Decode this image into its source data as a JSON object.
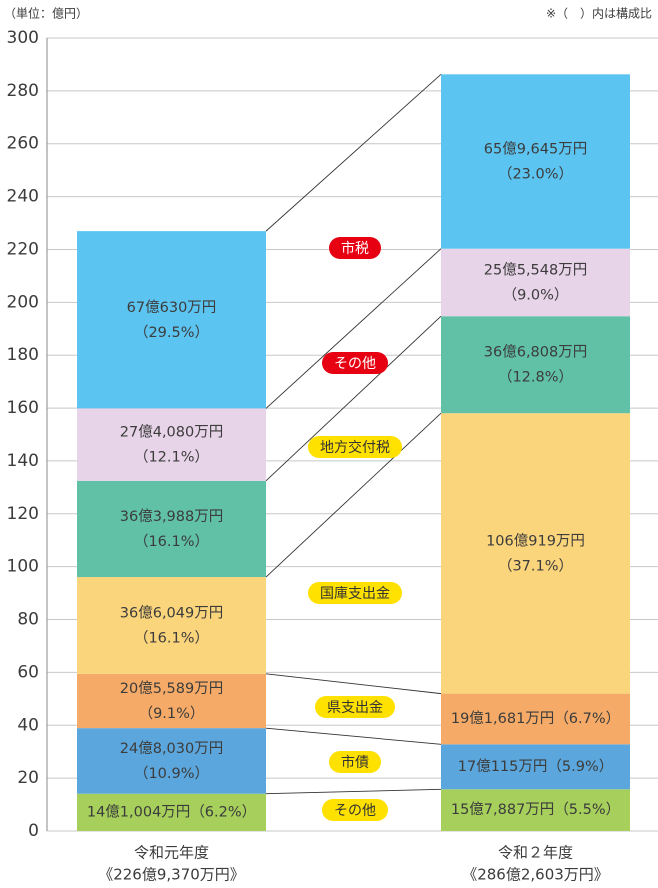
{
  "chart_data": {
    "type": "stacked_bar",
    "unit_note": "（単位：億円）",
    "share_note": "※（　）内は構成比",
    "categories": [
      "令和元年度",
      "令和２年度"
    ],
    "total_labels": [
      "《226億9,370万円》",
      "《286億2,603万円》"
    ],
    "ylim": [
      0,
      300
    ],
    "yticks": [
      0,
      20,
      40,
      60,
      80,
      100,
      120,
      140,
      160,
      180,
      200,
      220,
      240,
      260,
      280,
      300
    ],
    "grid": true,
    "series": [
      {
        "name": "その他",
        "color": "#a6cf5b",
        "badge_color": "#ffe100",
        "values": [
          14.1004,
          15.7887
        ],
        "value_labels": [
          "14億1,004万円",
          "15億7,887万円"
        ],
        "share_labels": [
          "（6.2%）",
          "（5.5%）"
        ]
      },
      {
        "name": "市債",
        "color": "#5ba7dd",
        "badge_color": "#ffe100",
        "values": [
          24.803,
          17.0115
        ],
        "value_labels": [
          "24億8,030万円",
          "17億115万円"
        ],
        "share_labels": [
          "（10.9%）",
          "（5.9%）"
        ]
      },
      {
        "name": "県支出金",
        "color": "#f5ab67",
        "badge_color": "#ffe100",
        "values": [
          20.5589,
          19.1681
        ],
        "value_labels": [
          "20億5,589万円",
          "19億1,681万円"
        ],
        "share_labels": [
          "（9.1%）",
          "（6.7%）"
        ]
      },
      {
        "name": "国庫支出金",
        "color": "#fbd57b",
        "badge_color": "#ffe100",
        "values": [
          36.6049,
          106.0919
        ],
        "value_labels": [
          "36億6,049万円",
          "106億919万円"
        ],
        "share_labels": [
          "（16.1%）",
          "（37.1%）"
        ]
      },
      {
        "name": "地方交付税",
        "color": "#60c1a6",
        "badge_color": "#ffe100",
        "values": [
          36.3988,
          36.6808
        ],
        "value_labels": [
          "36億3,988万円",
          "36億6,808万円"
        ],
        "share_labels": [
          "（16.1%）",
          "（12.8%）"
        ]
      },
      {
        "name": "その他",
        "color": "#e8d4e9",
        "badge_color": "#e60012",
        "values": [
          27.408,
          25.5548
        ],
        "value_labels": [
          "27億4,080万円",
          "25億5,548万円"
        ],
        "share_labels": [
          "（12.1%）",
          "（9.0%）"
        ]
      },
      {
        "name": "市税",
        "color": "#5cc4f1",
        "badge_color": "#e60012",
        "values": [
          67.063,
          65.9645
        ],
        "value_labels": [
          "67億630万円",
          "65億9,645万円"
        ],
        "share_labels": [
          "（29.5%）",
          "（23.0%）"
        ]
      }
    ]
  }
}
